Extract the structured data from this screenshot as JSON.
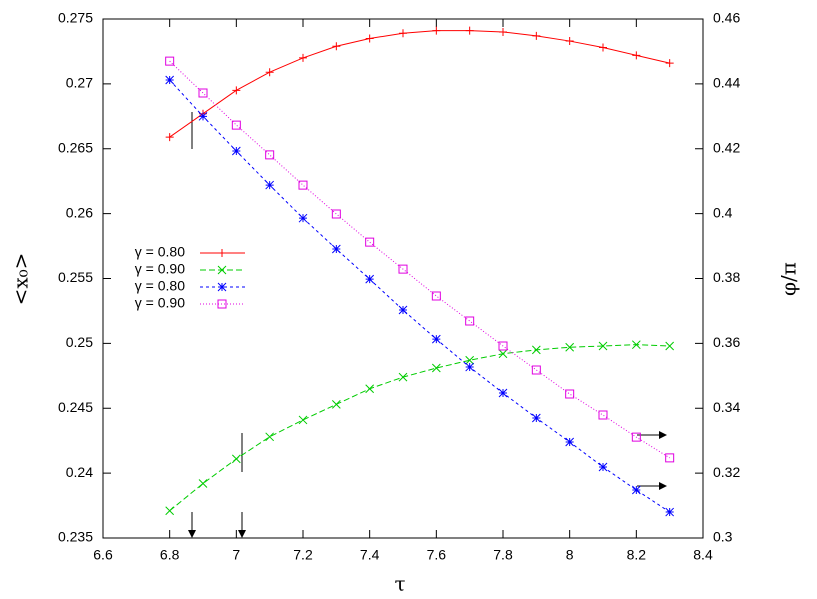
{
  "chart_data": {
    "type": "line",
    "x_label": "τ",
    "y_label": "<x₀>",
    "y2_label": "φ/π",
    "x": [
      6.8,
      6.9,
      7.0,
      7.1,
      7.2,
      7.3,
      7.4,
      7.5,
      7.6,
      7.7,
      7.8,
      7.9,
      8.0,
      8.1,
      8.2,
      8.3
    ],
    "series": [
      {
        "name": "γ = 0.80",
        "color": "#ff0000",
        "marker": "plus",
        "dash": "none",
        "values": [
          0.2659,
          0.2677,
          0.2695,
          0.2709,
          0.272,
          0.2729,
          0.2735,
          0.2739,
          0.2741,
          0.2741,
          0.274,
          0.2737,
          0.2733,
          0.2728,
          0.2722,
          0.2716
        ]
      },
      {
        "name": "γ = 0.90",
        "color": "#00cc00",
        "marker": "cross",
        "dash": "6,3",
        "values": [
          0.2371,
          0.2392,
          0.2411,
          0.2428,
          0.2441,
          0.2453,
          0.2465,
          0.2474,
          0.2481,
          0.2487,
          0.2492,
          0.2495,
          0.2497,
          0.2498,
          0.2499,
          0.2498
        ]
      },
      {
        "name": "γ = 0.80",
        "color": "#0000ff",
        "marker": "star",
        "dash": "3,3",
        "axis": "y2",
        "values": [
          0.4412,
          0.43,
          0.4193,
          0.4088,
          0.3986,
          0.3891,
          0.3798,
          0.3703,
          0.3613,
          0.3527,
          0.3447,
          0.337,
          0.3296,
          0.3219,
          0.3148,
          0.308
        ]
      },
      {
        "name": "γ = 0.90",
        "color": "#e000e0",
        "marker": "square",
        "dash": "1,2",
        "axis": "y2",
        "values": [
          0.447,
          0.4372,
          0.4273,
          0.4181,
          0.4088,
          0.3999,
          0.3912,
          0.3829,
          0.3746,
          0.3669,
          0.3592,
          0.3518,
          0.3444,
          0.3379,
          0.3311,
          0.3247
        ]
      }
    ],
    "xlim": [
      6.6,
      8.4
    ],
    "xticks": [
      6.6,
      6.8,
      7,
      7.2,
      7.4,
      7.6,
      7.8,
      8,
      8.2,
      8.4
    ],
    "ylim": [
      0.235,
      0.275
    ],
    "yticks": [
      0.235,
      0.24,
      0.245,
      0.25,
      0.255,
      0.26,
      0.265,
      0.27,
      0.275
    ],
    "y2lim": [
      0.3,
      0.46
    ],
    "y2ticks": [
      0.3,
      0.32,
      0.34,
      0.36,
      0.38,
      0.4,
      0.42,
      0.44,
      0.46
    ],
    "legend": "upper-left"
  }
}
